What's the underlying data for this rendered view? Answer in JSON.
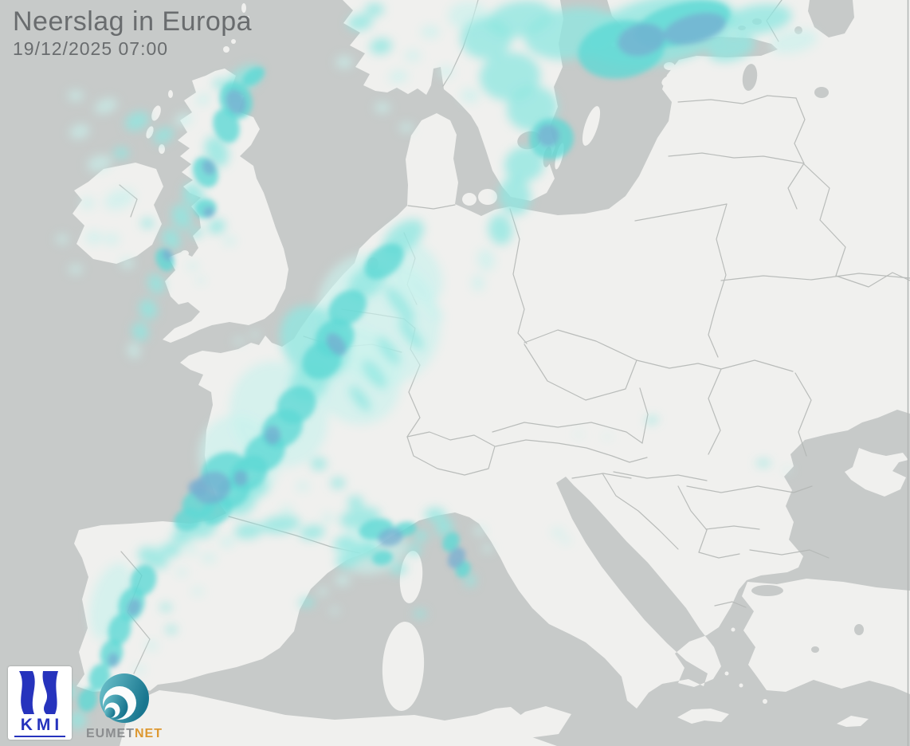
{
  "header": {
    "title": "Neerslag in Europa",
    "datetime": "19/12/2025 07:00"
  },
  "branding": {
    "kmi_label": "KMI",
    "eumetnet_prefix": "EUMET",
    "eumetnet_suffix": "NET"
  },
  "map": {
    "region": "Europe",
    "layer": "precipitation-radar",
    "colors": {
      "sea": "#c7cac9",
      "land": "#f0f0ee",
      "border": "#b4b7b5",
      "edge_line": "#b2b5b4",
      "title_text": "#696c6e",
      "kmi_blue": "#2633bd",
      "eumetnet_gray": "#8b8d8f",
      "eumetnet_orange": "#dd9831",
      "eumetnet_teal_dark": "#19768f",
      "eumetnet_teal_light": "#6fc4cd",
      "precip_levels": [
        "#c8f1ec",
        "#8fe7e0",
        "#5ed8d4",
        "#76add0"
      ],
      "precip_opacity": [
        0.65,
        0.78,
        0.8,
        0.75
      ]
    },
    "precipitation_cells": [
      [
        305,
        100,
        26,
        14,
        -35,
        2
      ],
      [
        318,
        96,
        16,
        9,
        -35,
        3
      ],
      [
        296,
        126,
        20,
        24,
        -25,
        3
      ],
      [
        296,
        128,
        12,
        16,
        -25,
        4
      ],
      [
        284,
        158,
        16,
        22,
        -20,
        3
      ],
      [
        272,
        190,
        14,
        20,
        -22,
        2
      ],
      [
        258,
        216,
        15,
        20,
        -25,
        3
      ],
      [
        262,
        210,
        8,
        10,
        -25,
        4
      ],
      [
        243,
        246,
        13,
        17,
        -25,
        2
      ],
      [
        228,
        272,
        12,
        16,
        -25,
        2
      ],
      [
        215,
        300,
        11,
        14,
        -25,
        2
      ],
      [
        207,
        326,
        11,
        15,
        -25,
        3
      ],
      [
        210,
        320,
        6,
        8,
        -25,
        4
      ],
      [
        196,
        356,
        10,
        13,
        -25,
        2
      ],
      [
        186,
        388,
        11,
        13,
        -25,
        2
      ],
      [
        176,
        416,
        10,
        12,
        -25,
        2
      ],
      [
        168,
        440,
        8,
        10,
        -25,
        1
      ],
      [
        150,
        250,
        20,
        12,
        -20,
        1
      ],
      [
        125,
        205,
        16,
        10,
        -15,
        1
      ],
      [
        100,
        165,
        13,
        9,
        -15,
        1
      ],
      [
        133,
        133,
        15,
        9,
        -20,
        1
      ],
      [
        172,
        152,
        16,
        11,
        -25,
        2
      ],
      [
        205,
        170,
        14,
        9,
        -30,
        2
      ],
      [
        95,
        120,
        10,
        7,
        0,
        1
      ],
      [
        152,
        192,
        10,
        7,
        0,
        2
      ],
      [
        118,
        298,
        11,
        8,
        0,
        1
      ],
      [
        95,
        338,
        9,
        6,
        0,
        1
      ],
      [
        78,
        300,
        8,
        6,
        0,
        1
      ],
      [
        110,
        255,
        9,
        7,
        0,
        1
      ],
      [
        140,
        300,
        10,
        7,
        0,
        1
      ],
      [
        160,
        330,
        9,
        7,
        0,
        1
      ],
      [
        185,
        280,
        8,
        6,
        0,
        2
      ],
      [
        230,
        150,
        12,
        8,
        -20,
        1
      ],
      [
        255,
        125,
        10,
        7,
        -20,
        1
      ],
      [
        275,
        105,
        8,
        6,
        -20,
        2
      ],
      [
        258,
        262,
        14,
        12,
        -20,
        3
      ],
      [
        262,
        266,
        7,
        7,
        0,
        4
      ],
      [
        272,
        284,
        11,
        9,
        -20,
        2
      ],
      [
        288,
        302,
        8,
        6,
        0,
        1
      ],
      [
        246,
        292,
        8,
        6,
        0,
        2
      ],
      [
        242,
        334,
        7,
        5,
        0,
        1
      ],
      [
        252,
        352,
        6,
        4,
        0,
        1
      ],
      [
        300,
        428,
        7,
        4,
        0,
        1
      ],
      [
        320,
        420,
        6,
        4,
        0,
        1
      ],
      [
        830,
        38,
        95,
        42,
        -12,
        2
      ],
      [
        856,
        30,
        62,
        26,
        -14,
        3
      ],
      [
        872,
        36,
        40,
        18,
        -14,
        4
      ],
      [
        780,
        62,
        55,
        36,
        -10,
        3
      ],
      [
        805,
        50,
        30,
        20,
        -12,
        4
      ],
      [
        718,
        42,
        60,
        32,
        -8,
        2
      ],
      [
        652,
        24,
        42,
        22,
        -10,
        2
      ],
      [
        610,
        48,
        32,
        26,
        0,
        2
      ],
      [
        588,
        20,
        26,
        18,
        0,
        1
      ],
      [
        640,
        96,
        38,
        30,
        -5,
        2
      ],
      [
        668,
        136,
        32,
        28,
        -10,
        2
      ],
      [
        692,
        174,
        28,
        26,
        -15,
        3
      ],
      [
        688,
        170,
        14,
        14,
        0,
        4
      ],
      [
        658,
        206,
        25,
        22,
        -15,
        2
      ],
      [
        646,
        246,
        20,
        24,
        -10,
        2
      ],
      [
        628,
        288,
        15,
        19,
        -10,
        2
      ],
      [
        610,
        326,
        11,
        14,
        -10,
        1
      ],
      [
        600,
        355,
        8,
        10,
        0,
        1
      ],
      [
        952,
        24,
        42,
        18,
        -8,
        2
      ],
      [
        996,
        52,
        30,
        14,
        -12,
        1
      ],
      [
        918,
        60,
        30,
        16,
        -15,
        2
      ],
      [
        452,
        28,
        16,
        10,
        -10,
        2
      ],
      [
        478,
        58,
        14,
        10,
        -10,
        2
      ],
      [
        432,
        78,
        11,
        8,
        0,
        1
      ],
      [
        500,
        96,
        12,
        8,
        -10,
        1
      ],
      [
        470,
        12,
        12,
        8,
        0,
        2
      ],
      [
        518,
        70,
        10,
        7,
        0,
        1
      ],
      [
        540,
        40,
        12,
        8,
        0,
        1
      ],
      [
        560,
        90,
        10,
        7,
        0,
        1
      ],
      [
        590,
        120,
        12,
        9,
        0,
        1
      ],
      [
        480,
        135,
        10,
        7,
        0,
        1
      ],
      [
        510,
        160,
        9,
        6,
        0,
        1
      ],
      [
        506,
        298,
        30,
        17,
        -38,
        2
      ],
      [
        482,
        328,
        28,
        18,
        -38,
        3
      ],
      [
        460,
        354,
        26,
        18,
        -38,
        2
      ],
      [
        436,
        386,
        26,
        20,
        -38,
        3
      ],
      [
        420,
        424,
        26,
        22,
        -38,
        3
      ],
      [
        422,
        432,
        10,
        16,
        -38,
        4
      ],
      [
        404,
        452,
        26,
        22,
        -38,
        3
      ],
      [
        388,
        480,
        26,
        22,
        -38,
        2
      ],
      [
        372,
        508,
        26,
        22,
        -38,
        3
      ],
      [
        354,
        538,
        28,
        22,
        -38,
        3
      ],
      [
        342,
        546,
        10,
        12,
        0,
        4
      ],
      [
        332,
        568,
        28,
        22,
        -38,
        3
      ],
      [
        312,
        594,
        26,
        20,
        -38,
        3
      ],
      [
        302,
        600,
        9,
        10,
        0,
        4
      ],
      [
        292,
        618,
        24,
        18,
        -38,
        3
      ],
      [
        272,
        640,
        22,
        16,
        -38,
        3
      ],
      [
        256,
        660,
        18,
        14,
        -38,
        2
      ],
      [
        475,
        400,
        75,
        85,
        -30,
        1
      ],
      [
        520,
        340,
        30,
        45,
        -35,
        1
      ],
      [
        445,
        470,
        55,
        65,
        -30,
        1
      ],
      [
        350,
        520,
        60,
        68,
        -25,
        1
      ],
      [
        300,
        575,
        50,
        55,
        -25,
        1
      ],
      [
        395,
        430,
        40,
        50,
        -35,
        2
      ],
      [
        502,
        382,
        9,
        28,
        -38,
        2
      ],
      [
        516,
        420,
        8,
        24,
        -38,
        2
      ],
      [
        488,
        440,
        8,
        22,
        -38,
        2
      ],
      [
        470,
        470,
        9,
        22,
        -38,
        2
      ],
      [
        452,
        500,
        8,
        20,
        -38,
        2
      ],
      [
        530,
        362,
        8,
        20,
        -38,
        1
      ],
      [
        545,
        390,
        7,
        16,
        -38,
        1
      ],
      [
        282,
        592,
        30,
        24,
        -20,
        3
      ],
      [
        266,
        612,
        24,
        20,
        -20,
        4
      ],
      [
        250,
        632,
        22,
        18,
        -20,
        3
      ],
      [
        236,
        652,
        18,
        14,
        -20,
        3
      ],
      [
        302,
        632,
        20,
        14,
        -25,
        2
      ],
      [
        322,
        612,
        16,
        12,
        -25,
        2
      ],
      [
        248,
        612,
        12,
        10,
        0,
        4
      ],
      [
        230,
        672,
        14,
        11,
        -20,
        2
      ],
      [
        215,
        690,
        12,
        9,
        0,
        2
      ],
      [
        400,
        582,
        10,
        8,
        0,
        2
      ],
      [
        424,
        606,
        9,
        7,
        0,
        2
      ],
      [
        446,
        630,
        10,
        8,
        0,
        2
      ],
      [
        380,
        610,
        8,
        6,
        0,
        1
      ],
      [
        360,
        640,
        8,
        6,
        0,
        1
      ],
      [
        412,
        650,
        8,
        6,
        0,
        1
      ],
      [
        352,
        658,
        25,
        11,
        -8,
        2
      ],
      [
        312,
        666,
        18,
        10,
        -8,
        2
      ],
      [
        392,
        668,
        16,
        9,
        -8,
        2
      ],
      [
        432,
        682,
        14,
        9,
        -10,
        2
      ],
      [
        466,
        692,
        12,
        8,
        -10,
        2
      ],
      [
        285,
        680,
        10,
        7,
        0,
        1
      ],
      [
        262,
        700,
        9,
        6,
        0,
        1
      ],
      [
        240,
        690,
        8,
        6,
        0,
        1
      ],
      [
        192,
        700,
        20,
        12,
        25,
        2
      ],
      [
        180,
        728,
        16,
        20,
        18,
        3
      ],
      [
        165,
        758,
        16,
        22,
        18,
        3
      ],
      [
        168,
        762,
        8,
        11,
        18,
        4
      ],
      [
        150,
        790,
        14,
        20,
        15,
        3
      ],
      [
        140,
        820,
        14,
        18,
        15,
        3
      ],
      [
        142,
        828,
        7,
        9,
        0,
        4
      ],
      [
        125,
        850,
        13,
        17,
        15,
        3
      ],
      [
        110,
        878,
        12,
        15,
        15,
        3
      ],
      [
        98,
        903,
        10,
        12,
        15,
        2
      ],
      [
        88,
        868,
        8,
        9,
        0,
        2
      ],
      [
        140,
        755,
        25,
        50,
        15,
        1
      ],
      [
        205,
        688,
        9,
        6,
        0,
        1
      ],
      [
        222,
        672,
        8,
        5,
        0,
        1
      ],
      [
        228,
        718,
        7,
        5,
        0,
        1
      ],
      [
        248,
        742,
        7,
        5,
        0,
        1
      ],
      [
        208,
        762,
        7,
        5,
        0,
        2
      ],
      [
        215,
        790,
        7,
        5,
        0,
        2
      ],
      [
        190,
        810,
        8,
        6,
        0,
        1
      ],
      [
        175,
        840,
        7,
        5,
        0,
        1
      ],
      [
        452,
        650,
        26,
        13,
        -10,
        2
      ],
      [
        472,
        664,
        22,
        13,
        -12,
        3
      ],
      [
        490,
        674,
        16,
        11,
        -12,
        4
      ],
      [
        508,
        664,
        15,
        9,
        -12,
        3
      ],
      [
        456,
        690,
        19,
        11,
        -10,
        2
      ],
      [
        436,
        704,
        15,
        9,
        -10,
        2
      ],
      [
        480,
        700,
        13,
        9,
        -10,
        3
      ],
      [
        500,
        714,
        11,
        7,
        -10,
        2
      ],
      [
        430,
        728,
        10,
        7,
        0,
        1
      ],
      [
        520,
        690,
        9,
        7,
        0,
        2
      ],
      [
        466,
        688,
        45,
        32,
        -10,
        1
      ],
      [
        528,
        672,
        10,
        7,
        0,
        2
      ],
      [
        546,
        646,
        13,
        9,
        0,
        2
      ],
      [
        558,
        662,
        11,
        12,
        25,
        2
      ],
      [
        566,
        680,
        10,
        13,
        28,
        3
      ],
      [
        573,
        700,
        10,
        14,
        28,
        4
      ],
      [
        581,
        714,
        9,
        11,
        28,
        3
      ],
      [
        590,
        728,
        7,
        8,
        0,
        2
      ],
      [
        602,
        666,
        8,
        6,
        0,
        1
      ],
      [
        612,
        688,
        7,
        5,
        0,
        1
      ],
      [
        700,
        668,
        8,
        5,
        0,
        1
      ],
      [
        710,
        678,
        6,
        4,
        0,
        1
      ],
      [
        527,
        770,
        8,
        5,
        0,
        2
      ],
      [
        385,
        756,
        10,
        6,
        -10,
        2
      ],
      [
        405,
        742,
        7,
        5,
        0,
        1
      ],
      [
        420,
        766,
        6,
        4,
        0,
        1
      ],
      [
        818,
        527,
        8,
        4,
        -10,
        2
      ],
      [
        958,
        581,
        9,
        4,
        0,
        2
      ],
      [
        988,
        590,
        6,
        3,
        0,
        1
      ],
      [
        762,
        548,
        5,
        3,
        0,
        1
      ],
      [
        726,
        545,
        5,
        3,
        0,
        1
      ]
    ]
  }
}
